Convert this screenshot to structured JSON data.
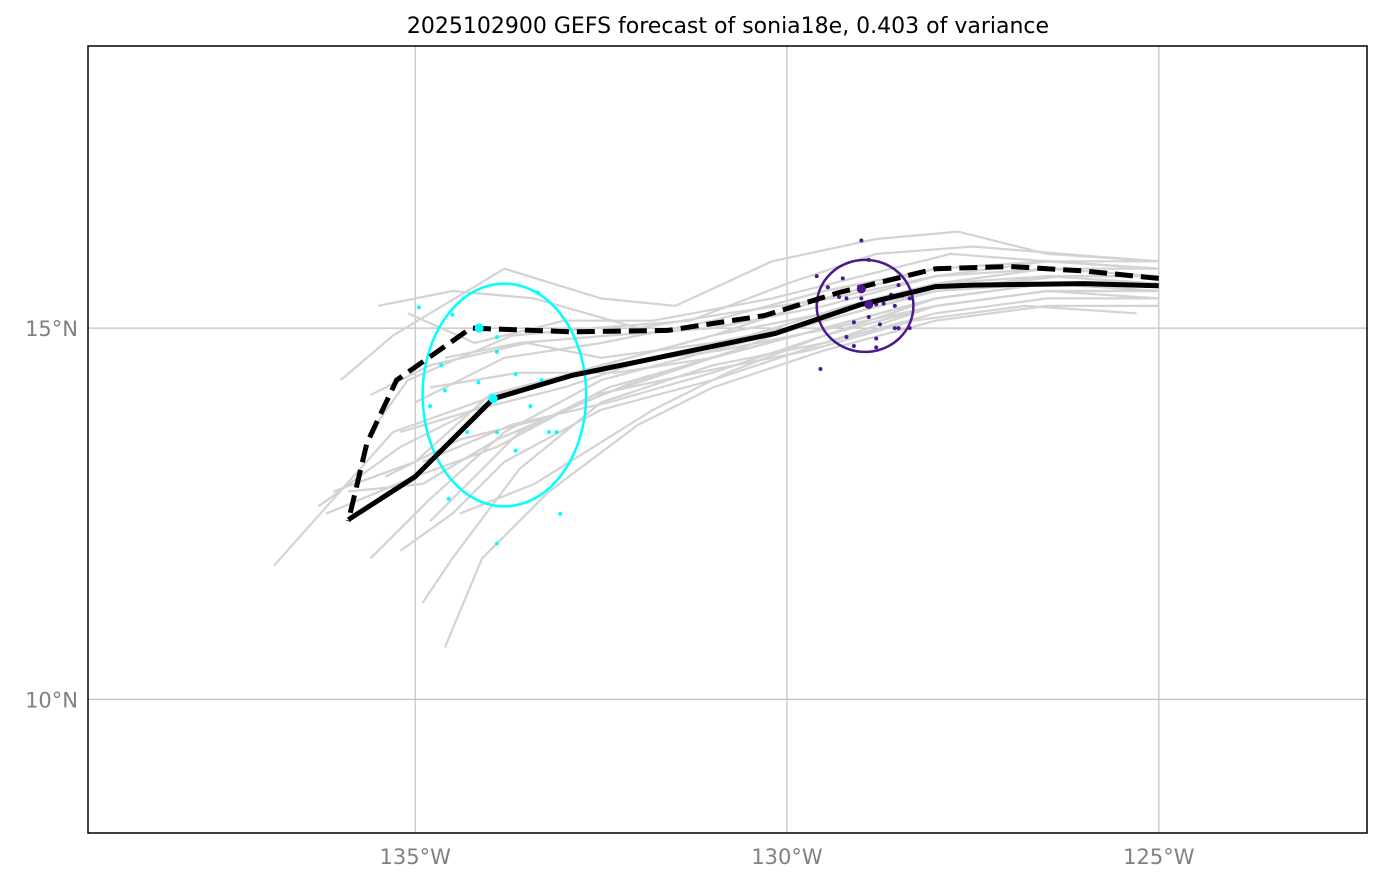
{
  "chart_data": {
    "type": "line",
    "title": "2025102900 GEFS forecast of sonia18e, 0.403 of variance",
    "xlim": [
      -139.4,
      -122.2
    ],
    "ylim": [
      8.2,
      18.8
    ],
    "xticks": [
      {
        "value": -135,
        "label": "135°W"
      },
      {
        "value": -130,
        "label": "130°W"
      },
      {
        "value": -125,
        "label": "125°W"
      }
    ],
    "yticks": [
      {
        "value": 15,
        "label": "15°N"
      },
      {
        "value": 10,
        "label": "10°N"
      }
    ],
    "grid": true,
    "colors": {
      "ensemble": "#d3d3d3",
      "mean": "#000000",
      "early_cluster": "#00ffff",
      "late_cluster": "#4b1a8a",
      "grid": "#c0c0c0",
      "frame": "#000000"
    },
    "ensemble_members": [
      [
        [
          -125.0,
          15.8
        ],
        [
          -126.5,
          15.9
        ],
        [
          -128.0,
          15.8
        ],
        [
          -129.5,
          15.4
        ],
        [
          -131.0,
          14.9
        ],
        [
          -132.5,
          14.5
        ],
        [
          -134.0,
          14.0
        ],
        [
          -135.2,
          13.4
        ],
        [
          -136.3,
          12.6
        ]
      ],
      [
        [
          -125.0,
          15.6
        ],
        [
          -126.5,
          15.6
        ],
        [
          -128.0,
          15.5
        ],
        [
          -129.5,
          15.1
        ],
        [
          -131.0,
          14.7
        ],
        [
          -132.5,
          14.3
        ],
        [
          -133.8,
          13.6
        ],
        [
          -134.8,
          12.7
        ],
        [
          -135.6,
          11.9
        ]
      ],
      [
        [
          -125.0,
          15.9
        ],
        [
          -126.5,
          16.0
        ],
        [
          -127.7,
          16.3
        ],
        [
          -128.8,
          16.2
        ],
        [
          -130.2,
          15.9
        ],
        [
          -131.5,
          15.3
        ],
        [
          -132.5,
          15.4
        ],
        [
          -133.8,
          15.8
        ],
        [
          -135.3,
          14.9
        ],
        [
          -136.0,
          14.3
        ]
      ],
      [
        [
          -125.0,
          15.5
        ],
        [
          -126.5,
          15.5
        ],
        [
          -128.0,
          15.3
        ],
        [
          -129.5,
          14.8
        ],
        [
          -131.0,
          14.3
        ],
        [
          -132.5,
          13.9
        ],
        [
          -133.8,
          13.2
        ],
        [
          -134.5,
          12.5
        ],
        [
          -135.2,
          12.0
        ]
      ],
      [
        [
          -125.0,
          15.7
        ],
        [
          -126.3,
          15.7
        ],
        [
          -128.0,
          15.5
        ],
        [
          -129.5,
          15.2
        ],
        [
          -131.0,
          14.9
        ],
        [
          -132.5,
          14.5
        ],
        [
          -134.0,
          14.1
        ],
        [
          -135.0,
          13.2
        ],
        [
          -136.1,
          12.8
        ]
      ],
      [
        [
          -125.0,
          15.4
        ],
        [
          -126.5,
          15.4
        ],
        [
          -128.0,
          15.2
        ],
        [
          -129.5,
          14.8
        ],
        [
          -131.0,
          14.5
        ],
        [
          -132.5,
          14.0
        ],
        [
          -133.6,
          13.1
        ],
        [
          -134.5,
          11.9
        ],
        [
          -134.9,
          11.3
        ]
      ],
      [
        [
          -125.0,
          15.8
        ],
        [
          -126.5,
          15.9
        ],
        [
          -127.8,
          16.0
        ],
        [
          -129.0,
          15.7
        ],
        [
          -130.2,
          15.4
        ],
        [
          -131.8,
          15.1
        ],
        [
          -133.0,
          15.1
        ],
        [
          -134.2,
          14.8
        ],
        [
          -135.1,
          15.2
        ]
      ],
      [
        [
          -125.0,
          15.6
        ],
        [
          -126.5,
          15.7
        ],
        [
          -128.0,
          15.6
        ],
        [
          -129.2,
          15.3
        ],
        [
          -130.5,
          14.9
        ],
        [
          -131.8,
          14.6
        ],
        [
          -133.0,
          14.2
        ],
        [
          -134.2,
          13.9
        ],
        [
          -135.2,
          13.6
        ]
      ],
      [
        [
          -125.0,
          15.3
        ],
        [
          -126.5,
          15.3
        ],
        [
          -128.0,
          15.1
        ],
        [
          -129.5,
          14.7
        ],
        [
          -131.0,
          14.2
        ],
        [
          -132.0,
          13.7
        ],
        [
          -133.2,
          12.8
        ],
        [
          -134.1,
          11.9
        ],
        [
          -134.6,
          10.7
        ]
      ],
      [
        [
          -125.0,
          15.9
        ],
        [
          -126.3,
          16.0
        ],
        [
          -127.5,
          16.1
        ],
        [
          -128.8,
          16.0
        ],
        [
          -130.0,
          15.6
        ],
        [
          -131.3,
          15.1
        ],
        [
          -132.6,
          15.0
        ],
        [
          -133.7,
          14.9
        ],
        [
          -135.1,
          14.3
        ],
        [
          -135.6,
          13.6
        ]
      ],
      [
        [
          -125.0,
          15.5
        ],
        [
          -126.5,
          15.6
        ],
        [
          -128.0,
          15.4
        ],
        [
          -129.5,
          15.0
        ],
        [
          -131.0,
          14.6
        ],
        [
          -132.3,
          14.4
        ],
        [
          -133.6,
          14.4
        ],
        [
          -134.8,
          14.2
        ]
      ],
      [
        [
          -125.3,
          15.2
        ],
        [
          -126.8,
          15.3
        ],
        [
          -128.3,
          15.1
        ],
        [
          -129.7,
          14.7
        ],
        [
          -131.2,
          14.4
        ],
        [
          -132.6,
          14.1
        ],
        [
          -133.9,
          13.4
        ],
        [
          -135.0,
          13.0
        ],
        [
          -136.2,
          12.5
        ]
      ],
      [
        [
          -125.0,
          15.7
        ],
        [
          -126.5,
          15.8
        ],
        [
          -128.0,
          15.7
        ],
        [
          -129.4,
          15.4
        ],
        [
          -130.8,
          15.2
        ],
        [
          -132.0,
          15.0
        ],
        [
          -133.4,
          15.4
        ],
        [
          -134.5,
          15.5
        ],
        [
          -135.5,
          15.3
        ]
      ],
      [
        [
          -125.0,
          15.6
        ],
        [
          -126.5,
          15.6
        ],
        [
          -128.0,
          15.4
        ],
        [
          -129.5,
          14.9
        ],
        [
          -130.8,
          14.4
        ],
        [
          -131.8,
          13.9
        ],
        [
          -132.6,
          13.4
        ],
        [
          -133.4,
          12.9
        ],
        [
          -134.4,
          12.5
        ]
      ],
      [
        [
          -125.0,
          15.8
        ],
        [
          -126.5,
          15.8
        ],
        [
          -128.0,
          15.6
        ],
        [
          -129.4,
          15.2
        ],
        [
          -130.7,
          14.7
        ],
        [
          -132.0,
          14.3
        ],
        [
          -133.2,
          13.8
        ],
        [
          -134.4,
          13.5
        ],
        [
          -135.4,
          13.0
        ]
      ],
      [
        [
          -125.0,
          15.4
        ],
        [
          -126.5,
          15.5
        ],
        [
          -128.0,
          15.3
        ],
        [
          -129.4,
          15.0
        ],
        [
          -130.9,
          14.7
        ],
        [
          -132.4,
          14.5
        ],
        [
          -133.9,
          14.1
        ],
        [
          -135.3,
          13.6
        ],
        [
          -136.9,
          11.8
        ]
      ],
      [
        [
          -125.0,
          15.7
        ],
        [
          -126.5,
          15.7
        ],
        [
          -128.0,
          15.5
        ],
        [
          -129.5,
          15.1
        ],
        [
          -131.0,
          14.8
        ],
        [
          -132.5,
          14.6
        ],
        [
          -133.5,
          14.8
        ],
        [
          -134.8,
          14.5
        ],
        [
          -135.6,
          14.1
        ]
      ],
      [
        [
          -125.0,
          15.5
        ],
        [
          -126.5,
          15.6
        ],
        [
          -128.0,
          15.4
        ],
        [
          -129.5,
          15.0
        ],
        [
          -131.0,
          14.6
        ],
        [
          -132.5,
          14.1
        ],
        [
          -133.9,
          13.5
        ],
        [
          -134.9,
          12.9
        ],
        [
          -135.9,
          12.8
        ]
      ],
      [
        [
          -125.0,
          15.9
        ],
        [
          -126.5,
          15.9
        ],
        [
          -128.0,
          15.7
        ],
        [
          -129.5,
          15.3
        ],
        [
          -131.0,
          15.0
        ],
        [
          -132.4,
          14.9
        ],
        [
          -133.6,
          14.8
        ],
        [
          -134.6,
          14.6
        ]
      ],
      [
        [
          -125.0,
          15.6
        ],
        [
          -126.5,
          15.6
        ],
        [
          -128.0,
          15.4
        ],
        [
          -129.5,
          15.0
        ],
        [
          -131.0,
          14.6
        ],
        [
          -132.4,
          14.2
        ],
        [
          -133.6,
          13.6
        ],
        [
          -134.4,
          12.8
        ],
        [
          -134.8,
          12.4
        ]
      ],
      [
        [
          -125.0,
          15.5
        ],
        [
          -126.5,
          15.5
        ],
        [
          -128.0,
          15.3
        ],
        [
          -129.5,
          14.9
        ],
        [
          -131.0,
          14.4
        ],
        [
          -132.4,
          14.0
        ],
        [
          -133.7,
          13.7
        ],
        [
          -134.9,
          13.2
        ]
      ],
      [
        [
          -125.0,
          15.8
        ],
        [
          -126.5,
          15.9
        ],
        [
          -128.0,
          15.8
        ],
        [
          -129.5,
          15.5
        ],
        [
          -131.0,
          15.1
        ],
        [
          -132.5,
          14.8
        ],
        [
          -133.8,
          14.6
        ],
        [
          -135.0,
          14.0
        ]
      ]
    ],
    "ensemble_mean": [
      [
        -125.0,
        15.57
      ],
      [
        -126.0,
        15.6
      ],
      [
        -127.5,
        15.58
      ],
      [
        -128.0,
        15.56
      ],
      [
        -129.0,
        15.32
      ],
      [
        -130.15,
        14.93
      ],
      [
        -131.6,
        14.63
      ],
      [
        -132.9,
        14.36
      ],
      [
        -133.95,
        14.05
      ],
      [
        -135.0,
        13.0
      ],
      [
        -135.9,
        12.42
      ]
    ],
    "cluster_mean": [
      [
        -125.0,
        15.67
      ],
      [
        -126.0,
        15.77
      ],
      [
        -127.0,
        15.83
      ],
      [
        -128.0,
        15.8
      ],
      [
        -129.3,
        15.48
      ],
      [
        -130.3,
        15.17
      ],
      [
        -131.6,
        14.97
      ],
      [
        -132.9,
        14.95
      ],
      [
        -134.25,
        15.0
      ],
      [
        -135.25,
        14.3
      ],
      [
        -135.65,
        13.45
      ],
      [
        -135.9,
        12.4
      ]
    ],
    "early_cluster": {
      "center": [
        -134.14,
        15.0
      ],
      "mean_point": [
        -133.95,
        14.05
      ],
      "ellipse_center": [
        -133.8,
        14.1
      ],
      "ellipse_radius_lon": 1.1,
      "ellipse_radius_lat": 1.5,
      "points": [
        [
          -134.95,
          15.28
        ],
        [
          -134.5,
          15.18
        ],
        [
          -133.35,
          15.48
        ],
        [
          -133.9,
          14.88
        ],
        [
          -134.65,
          14.5
        ],
        [
          -133.9,
          14.68
        ],
        [
          -134.15,
          14.27
        ],
        [
          -133.65,
          14.38
        ],
        [
          -133.3,
          14.3
        ],
        [
          -134.6,
          14.16
        ],
        [
          -134.8,
          13.95
        ],
        [
          -133.45,
          13.95
        ],
        [
          -134.3,
          13.6
        ],
        [
          -133.9,
          13.6
        ],
        [
          -133.2,
          13.6
        ],
        [
          -133.1,
          13.6
        ],
        [
          -133.65,
          13.35
        ],
        [
          -134.55,
          12.7
        ],
        [
          -133.05,
          12.5
        ],
        [
          -133.9,
          12.1
        ]
      ]
    },
    "late_cluster": {
      "center": [
        -129.0,
        15.53
      ],
      "mean_point": [
        -128.9,
        15.32
      ],
      "ellipse_center": [
        -128.95,
        15.3
      ],
      "ellipse_radius_lon": 0.65,
      "ellipse_radius_lat": 0.62,
      "points": [
        [
          -129.0,
          16.18
        ],
        [
          -128.9,
          15.92
        ],
        [
          -129.6,
          15.7
        ],
        [
          -129.25,
          15.67
        ],
        [
          -129.45,
          15.55
        ],
        [
          -129.3,
          15.42
        ],
        [
          -129.2,
          15.4
        ],
        [
          -129.0,
          15.4
        ],
        [
          -128.6,
          15.45
        ],
        [
          -128.7,
          15.33
        ],
        [
          -128.5,
          15.58
        ],
        [
          -128.45,
          15.44
        ],
        [
          -128.35,
          15.4
        ],
        [
          -129.6,
          15.36
        ],
        [
          -128.8,
          15.32
        ],
        [
          -128.55,
          15.3
        ],
        [
          -128.9,
          15.15
        ],
        [
          -129.1,
          15.08
        ],
        [
          -128.75,
          15.05
        ],
        [
          -128.55,
          15.0
        ],
        [
          -128.5,
          15.0
        ],
        [
          -128.35,
          15.0
        ],
        [
          -129.2,
          14.88
        ],
        [
          -128.8,
          14.86
        ],
        [
          -129.1,
          14.76
        ],
        [
          -128.8,
          14.74
        ],
        [
          -129.55,
          14.45
        ]
      ]
    }
  }
}
